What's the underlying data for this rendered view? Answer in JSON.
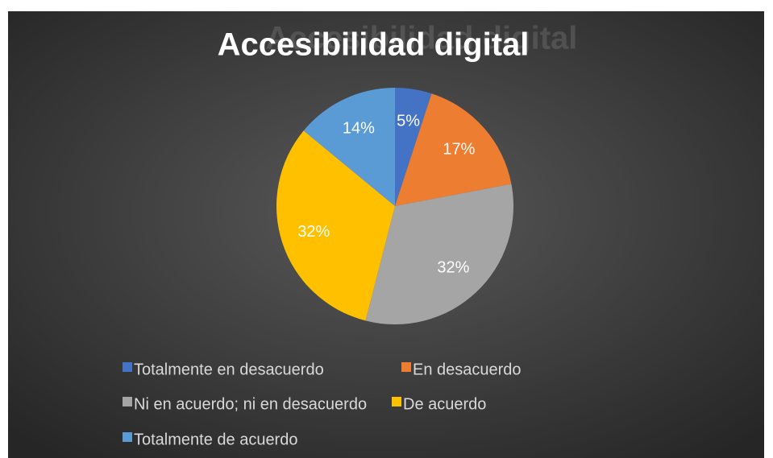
{
  "chart_data": {
    "type": "pie",
    "title": "Accesibilidad digital",
    "categories": [
      "Totalmente en desacuerdo",
      "En desacuerdo",
      "Ni en acuerdo; ni en desacuerdo",
      "De acuerdo",
      "Totalmente de acuerdo"
    ],
    "values": [
      5,
      17,
      32,
      32,
      14
    ],
    "value_labels": [
      "5%",
      "17%",
      "32%",
      "32%",
      "14%"
    ],
    "colors": [
      "#4472c4",
      "#ed7d31",
      "#a5a5a5",
      "#ffc000",
      "#5b9bd5"
    ],
    "legend": "bottom"
  }
}
